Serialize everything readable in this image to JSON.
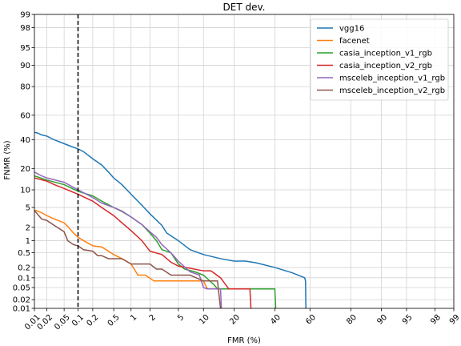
{
  "chart_data": {
    "type": "line",
    "title": "DET dev.",
    "xlabel": "FMR (%)",
    "ylabel": "FNMR (%)",
    "xscale": "probit",
    "yscale": "probit",
    "xlim": [
      0.01,
      99
    ],
    "ylim": [
      0.01,
      99
    ],
    "x_ticks": [
      0.01,
      0.02,
      0.05,
      0.1,
      0.2,
      0.5,
      1,
      2,
      5,
      10,
      20,
      40,
      60,
      80,
      90,
      95,
      98,
      99
    ],
    "y_ticks": [
      0.01,
      0.02,
      0.05,
      0.1,
      0.2,
      0.5,
      1,
      2,
      5,
      10,
      20,
      40,
      60,
      80,
      90,
      95,
      98,
      99
    ],
    "grid": true,
    "legend_position": "top-right",
    "threshold_line": {
      "x": 0.1,
      "style": "dashed",
      "color": "#000000"
    },
    "series": [
      {
        "name": "vgg16",
        "color": "#1f77b4",
        "points": [
          [
            0.01,
            46
          ],
          [
            0.012,
            45.5
          ],
          [
            0.015,
            44
          ],
          [
            0.02,
            43
          ],
          [
            0.03,
            40
          ],
          [
            0.05,
            37
          ],
          [
            0.07,
            35
          ],
          [
            0.1,
            33
          ],
          [
            0.13,
            31
          ],
          [
            0.2,
            26
          ],
          [
            0.3,
            22
          ],
          [
            0.4,
            18
          ],
          [
            0.5,
            15
          ],
          [
            0.7,
            12
          ],
          [
            1,
            8.5
          ],
          [
            1.5,
            5.5
          ],
          [
            2,
            3.8
          ],
          [
            3,
            2.2
          ],
          [
            3.5,
            1.5
          ],
          [
            4,
            1.3
          ],
          [
            5,
            1
          ],
          [
            7,
            0.6
          ],
          [
            10,
            0.45
          ],
          [
            15,
            0.35
          ],
          [
            20,
            0.3
          ],
          [
            25,
            0.3
          ],
          [
            30,
            0.27
          ],
          [
            40,
            0.2
          ],
          [
            50,
            0.14
          ],
          [
            57,
            0.1
          ],
          [
            57.5,
            0.08
          ],
          [
            57.7,
            0.01
          ]
        ]
      },
      {
        "name": "facenet",
        "color": "#ff7f0e",
        "points": [
          [
            0.01,
            4.5
          ],
          [
            0.015,
            4
          ],
          [
            0.02,
            3.5
          ],
          [
            0.03,
            3
          ],
          [
            0.05,
            2.5
          ],
          [
            0.06,
            2.1
          ],
          [
            0.08,
            1.5
          ],
          [
            0.1,
            1.2
          ],
          [
            0.13,
            1
          ],
          [
            0.2,
            0.75
          ],
          [
            0.3,
            0.7
          ],
          [
            0.4,
            0.55
          ],
          [
            0.5,
            0.45
          ],
          [
            0.7,
            0.35
          ],
          [
            1,
            0.25
          ],
          [
            1.3,
            0.12
          ],
          [
            1.7,
            0.12
          ],
          [
            2.3,
            0.08
          ],
          [
            10,
            0.08
          ],
          [
            11,
            0.045
          ],
          [
            12,
            0.045
          ]
        ]
      },
      {
        "name": "casia_inception_v1_rgb",
        "color": "#2ca02c",
        "points": [
          [
            0.01,
            16
          ],
          [
            0.02,
            14
          ],
          [
            0.05,
            12
          ],
          [
            0.1,
            9.5
          ],
          [
            0.2,
            8
          ],
          [
            0.3,
            6.5
          ],
          [
            0.5,
            5
          ],
          [
            0.7,
            4.2
          ],
          [
            1,
            3.3
          ],
          [
            1.5,
            2.3
          ],
          [
            2,
            1.5
          ],
          [
            2.5,
            1
          ],
          [
            3,
            0.6
          ],
          [
            4,
            0.5
          ],
          [
            4.5,
            0.35
          ],
          [
            5,
            0.25
          ],
          [
            6,
            0.18
          ],
          [
            8,
            0.15
          ],
          [
            10,
            0.12
          ],
          [
            13,
            0.06
          ],
          [
            14,
            0.045
          ],
          [
            40,
            0.045
          ],
          [
            40.5,
            0.01
          ]
        ]
      },
      {
        "name": "casia_inception_v2_rgb",
        "color": "#d62728",
        "points": [
          [
            0.01,
            15
          ],
          [
            0.02,
            13.5
          ],
          [
            0.03,
            12
          ],
          [
            0.05,
            10.5
          ],
          [
            0.1,
            8.5
          ],
          [
            0.2,
            6.5
          ],
          [
            0.3,
            5
          ],
          [
            0.5,
            3.5
          ],
          [
            0.7,
            2.5
          ],
          [
            1,
            1.7
          ],
          [
            1.5,
            1
          ],
          [
            2,
            0.55
          ],
          [
            3,
            0.45
          ],
          [
            4,
            0.28
          ],
          [
            5,
            0.22
          ],
          [
            10,
            0.16
          ],
          [
            12,
            0.16
          ],
          [
            15,
            0.1
          ],
          [
            18,
            0.045
          ],
          [
            27,
            0.045
          ],
          [
            27.5,
            0.01
          ]
        ]
      },
      {
        "name": "msceleb_inception_v1_rgb",
        "color": "#9467bd",
        "points": [
          [
            0.01,
            18
          ],
          [
            0.015,
            16
          ],
          [
            0.02,
            15
          ],
          [
            0.05,
            13
          ],
          [
            0.1,
            10
          ],
          [
            0.15,
            8.5
          ],
          [
            0.2,
            7.5
          ],
          [
            0.3,
            6
          ],
          [
            0.5,
            5
          ],
          [
            0.7,
            4.3
          ],
          [
            1,
            3.3
          ],
          [
            1.5,
            2.3
          ],
          [
            2,
            1.6
          ],
          [
            2.5,
            1.2
          ],
          [
            3,
            0.8
          ],
          [
            4,
            0.5
          ],
          [
            5,
            0.3
          ],
          [
            7,
            0.15
          ],
          [
            9,
            0.12
          ],
          [
            10,
            0.05
          ],
          [
            11,
            0.045
          ],
          [
            15,
            0.045
          ],
          [
            15.3,
            0.01
          ]
        ]
      },
      {
        "name": "msceleb_inception_v2_rgb",
        "color": "#8c564b",
        "points": [
          [
            0.01,
            4.4
          ],
          [
            0.015,
            3
          ],
          [
            0.02,
            2.8
          ],
          [
            0.03,
            2.2
          ],
          [
            0.05,
            1.6
          ],
          [
            0.06,
            1
          ],
          [
            0.08,
            0.8
          ],
          [
            0.1,
            0.75
          ],
          [
            0.13,
            0.6
          ],
          [
            0.2,
            0.55
          ],
          [
            0.25,
            0.42
          ],
          [
            0.3,
            0.42
          ],
          [
            0.4,
            0.35
          ],
          [
            0.7,
            0.35
          ],
          [
            1,
            0.25
          ],
          [
            2,
            0.25
          ],
          [
            2.5,
            0.18
          ],
          [
            3,
            0.18
          ],
          [
            4,
            0.12
          ],
          [
            7,
            0.12
          ],
          [
            10,
            0.08
          ],
          [
            14,
            0.08
          ],
          [
            15,
            0.01
          ]
        ]
      }
    ]
  }
}
